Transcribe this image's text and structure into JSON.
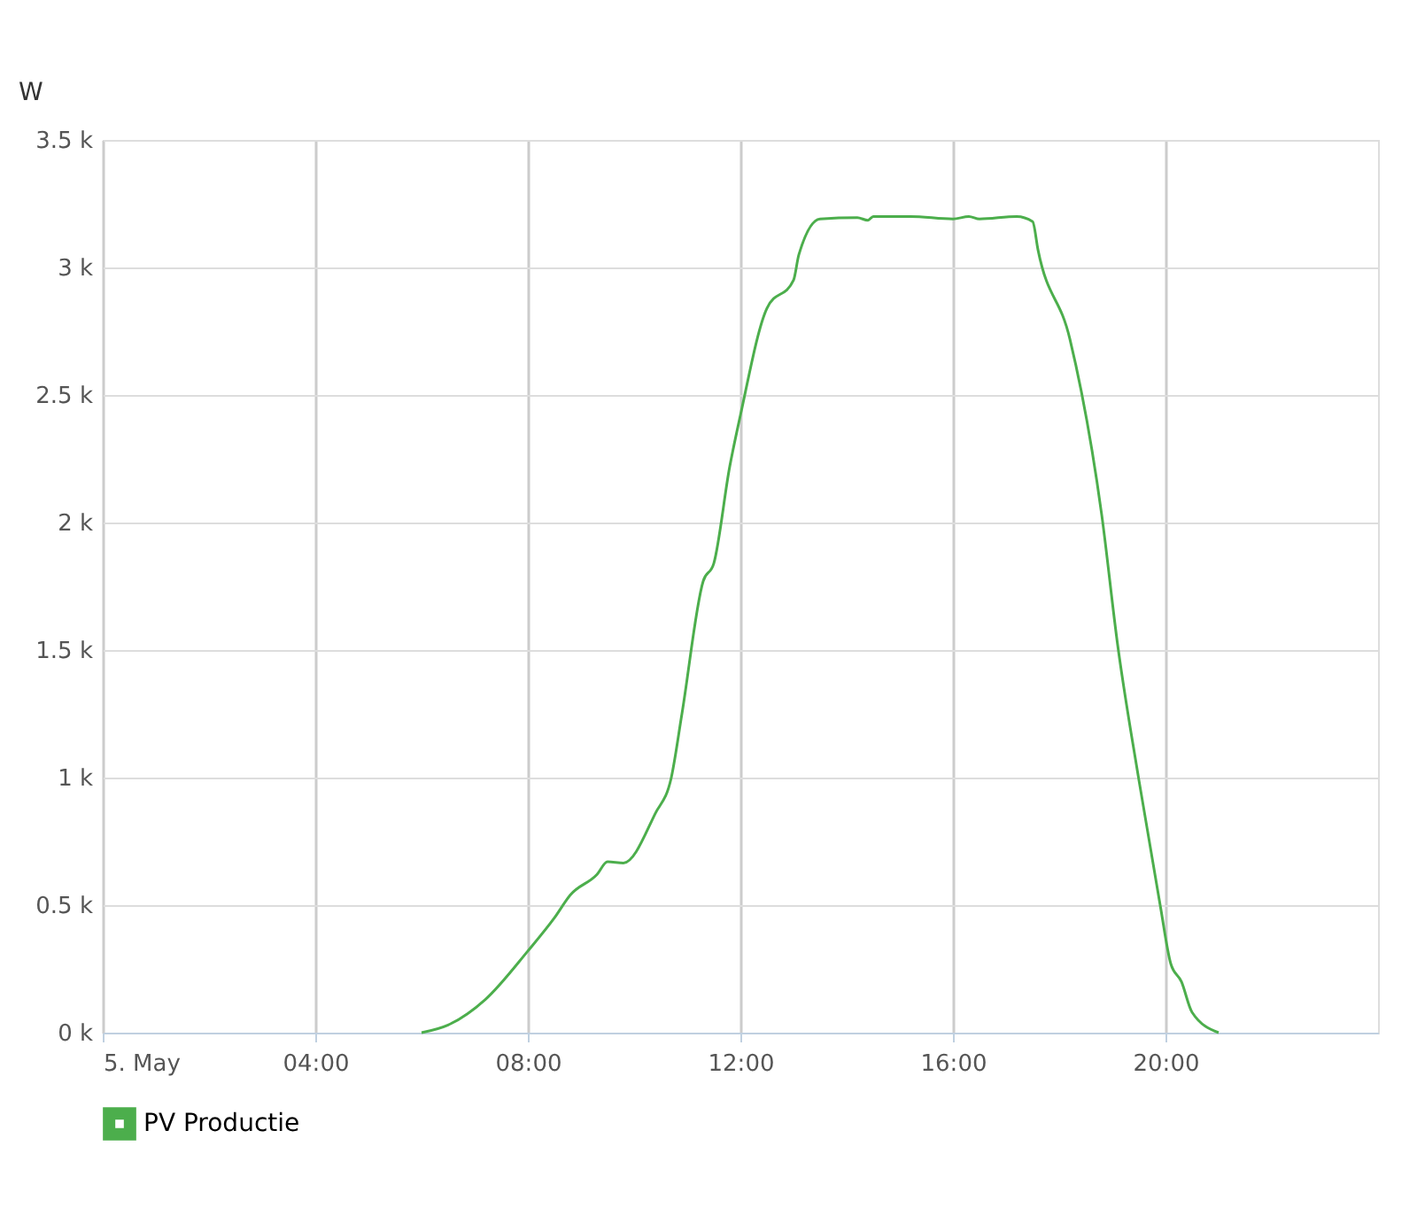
{
  "chart_data": {
    "type": "line",
    "ylabel": "W",
    "xlim": [
      0,
      24
    ],
    "xticks": [
      {
        "value": 0,
        "label": "5. May"
      },
      {
        "value": 4,
        "label": "04:00"
      },
      {
        "value": 8,
        "label": "08:00"
      },
      {
        "value": 12,
        "label": "12:00"
      },
      {
        "value": 16,
        "label": "16:00"
      },
      {
        "value": 20,
        "label": "20:00"
      }
    ],
    "ylim": [
      0,
      3500
    ],
    "yticks": [
      {
        "value": 0,
        "label": "0 k"
      },
      {
        "value": 500,
        "label": "0.5 k"
      },
      {
        "value": 1000,
        "label": "1 k"
      },
      {
        "value": 1500,
        "label": "1.5 k"
      },
      {
        "value": 2000,
        "label": "2 k"
      },
      {
        "value": 2500,
        "label": "2.5 k"
      },
      {
        "value": 3000,
        "label": "3 k"
      },
      {
        "value": 3500,
        "label": "3.5 k"
      }
    ],
    "grid": true,
    "legend": "bottom",
    "marker": "none",
    "line_style": "solid",
    "series": [
      {
        "name": "PV Productie",
        "color": "#4cae4c",
        "x": [
          6.0,
          6.5,
          7.2,
          8.0,
          8.5,
          8.8,
          9.3,
          9.5,
          9.8,
          10.4,
          10.7,
          10.9,
          11.3,
          11.5,
          11.8,
          12.0,
          12.5,
          13.0,
          13.1,
          13.5,
          14.2,
          14.4,
          14.5,
          15.2,
          16.0,
          16.3,
          16.5,
          17.2,
          17.5,
          17.6,
          18.2,
          18.8,
          19.1,
          19.5,
          19.9,
          20.1,
          20.3,
          20.5,
          21.0
        ],
        "values": [
          0,
          30,
          130,
          320,
          450,
          540,
          620,
          670,
          665,
          860,
          1000,
          1250,
          1770,
          1840,
          2220,
          2420,
          2840,
          2950,
          3050,
          3190,
          3195,
          3185,
          3200,
          3200,
          3190,
          3200,
          3190,
          3200,
          3180,
          3070,
          2720,
          2030,
          1520,
          990,
          500,
          270,
          200,
          80,
          0
        ]
      }
    ]
  }
}
